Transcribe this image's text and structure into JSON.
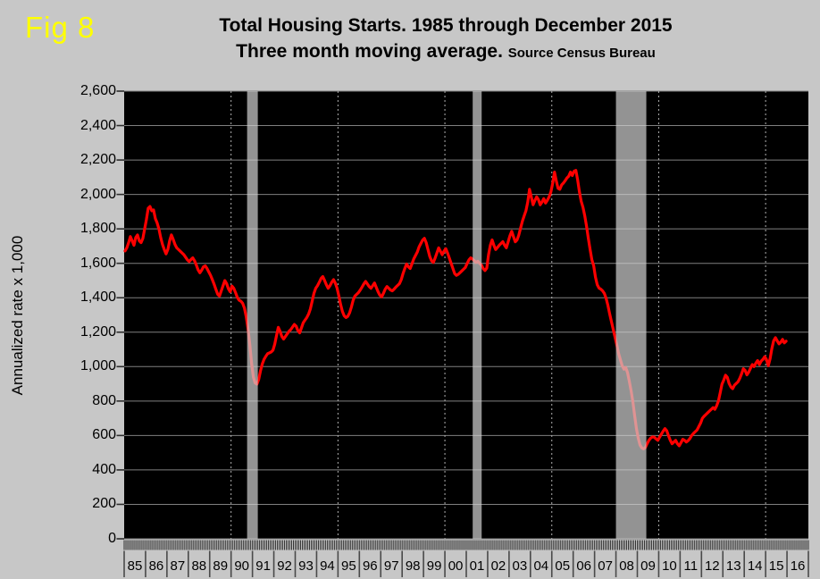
{
  "figure_label": "Fig 8",
  "title": "Total Housing Starts. 1985 through December 2015",
  "subtitle": "Three month moving average.",
  "source_note": "Source Census Bureau",
  "colors": {
    "background": "#C7C7C7",
    "plot_background": "#000000",
    "line": "#FF0000",
    "recession_band": "#D2D2D2",
    "recession_band_opacity": 0.7,
    "gridline": "#7F7F7F",
    "dashed_gridline": "#B0B0B0",
    "axis_tick": "#2E2E2E",
    "figure_label_color": "#FFFF00",
    "text": "#000000"
  },
  "chart_data": {
    "type": "line",
    "title": "Total Housing Starts. 1985 through December 2015",
    "subtitle": "Three month moving average.",
    "source": "Source Census Bureau",
    "xlabel": "",
    "ylabel": "Annualized rate x 1,000",
    "ylim": [
      0,
      2600
    ],
    "y_tick_interval": 200,
    "y_tick_labels": [
      "0",
      "200",
      "400",
      "600",
      "800",
      "1,000",
      "1,200",
      "1,400",
      "1,600",
      "1,800",
      "2,000",
      "2,200",
      "2,400",
      "2,600"
    ],
    "x_tick_labels": [
      "85",
      "86",
      "87",
      "88",
      "89",
      "90",
      "91",
      "92",
      "93",
      "94",
      "95",
      "96",
      "97",
      "98",
      "99",
      "00",
      "01",
      "02",
      "03",
      "04",
      "05",
      "06",
      "07",
      "08",
      "09",
      "10",
      "11",
      "12",
      "13",
      "14",
      "15",
      "16"
    ],
    "x_start_year": 1985,
    "x_gridline_years": [
      1990,
      1995,
      2000,
      2005,
      2010,
      2015
    ],
    "recession_bands": [
      {
        "start": 1990.75,
        "end": 1991.25
      },
      {
        "start": 2001.3,
        "end": 2001.72
      },
      {
        "start": 2008.0,
        "end": 2009.42
      }
    ],
    "grid": true,
    "legend": "none",
    "series": [
      {
        "name": "Total housing starts (3-month moving average)",
        "color": "#FF0000",
        "start_year": 1985,
        "start_month": 1,
        "frequency": "monthly",
        "values": [
          1672,
          1690,
          1720,
          1755,
          1730,
          1705,
          1750,
          1765,
          1730,
          1720,
          1745,
          1800,
          1855,
          1920,
          1930,
          1905,
          1910,
          1860,
          1835,
          1800,
          1750,
          1710,
          1680,
          1655,
          1680,
          1730,
          1765,
          1740,
          1710,
          1690,
          1680,
          1670,
          1660,
          1650,
          1635,
          1620,
          1610,
          1622,
          1632,
          1615,
          1590,
          1562,
          1545,
          1560,
          1580,
          1585,
          1570,
          1550,
          1530,
          1505,
          1478,
          1448,
          1420,
          1410,
          1440,
          1470,
          1500,
          1482,
          1452,
          1435,
          1468,
          1455,
          1430,
          1402,
          1386,
          1380,
          1368,
          1340,
          1290,
          1220,
          1130,
          1020,
          940,
          905,
          898,
          925,
          975,
          1015,
          1042,
          1060,
          1075,
          1080,
          1085,
          1095,
          1130,
          1180,
          1228,
          1205,
          1175,
          1160,
          1175,
          1190,
          1205,
          1215,
          1230,
          1245,
          1235,
          1210,
          1196,
          1225,
          1255,
          1270,
          1285,
          1305,
          1335,
          1380,
          1425,
          1455,
          1470,
          1490,
          1512,
          1523,
          1500,
          1475,
          1455,
          1470,
          1490,
          1505,
          1485,
          1455,
          1410,
          1360,
          1320,
          1295,
          1285,
          1292,
          1312,
          1345,
          1385,
          1410,
          1420,
          1430,
          1445,
          1462,
          1480,
          1495,
          1480,
          1465,
          1455,
          1470,
          1486,
          1460,
          1435,
          1415,
          1405,
          1425,
          1450,
          1465,
          1455,
          1445,
          1440,
          1450,
          1462,
          1472,
          1482,
          1505,
          1540,
          1570,
          1596,
          1580,
          1570,
          1596,
          1625,
          1645,
          1665,
          1695,
          1715,
          1735,
          1745,
          1720,
          1680,
          1640,
          1615,
          1605,
          1630,
          1660,
          1690,
          1670,
          1650,
          1670,
          1685,
          1660,
          1630,
          1600,
          1570,
          1540,
          1530,
          1536,
          1546,
          1556,
          1566,
          1576,
          1600,
          1620,
          1632,
          1625,
          1615,
          1605,
          1612,
          1600,
          1590,
          1570,
          1558,
          1572,
          1650,
          1705,
          1736,
          1705,
          1680,
          1692,
          1705,
          1715,
          1726,
          1705,
          1690,
          1725,
          1760,
          1786,
          1755,
          1725,
          1736,
          1765,
          1805,
          1845,
          1876,
          1906,
          1956,
          2030,
          1985,
          1940,
          1965,
          1986,
          1970,
          1940,
          1956,
          1976,
          1950,
          1966,
          1986,
          2015,
          2065,
          2130,
          2080,
          2036,
          2030,
          2055,
          2066,
          2080,
          2096,
          2106,
          2130,
          2110,
          2135,
          2140,
          2085,
          2015,
          1960,
          1925,
          1876,
          1815,
          1745,
          1680,
          1620,
          1586,
          1520,
          1476,
          1456,
          1450,
          1440,
          1425,
          1396,
          1355,
          1305,
          1260,
          1215,
          1170,
          1125,
          1076,
          1040,
          1005,
          985,
          995,
          965,
          915,
          860,
          795,
          715,
          640,
          585,
          545,
          528,
          522,
          530,
          552,
          572,
          585,
          592,
          590,
          580,
          572,
          590,
          608,
          625,
          640,
          628,
          598,
          572,
          552,
          562,
          572,
          552,
          540,
          558,
          578,
          572,
          562,
          570,
          582,
          600,
          612,
          622,
          632,
          652,
          672,
          700,
          712,
          722,
          732,
          742,
          752,
          762,
          752,
          772,
          800,
          848,
          898,
          922,
          950,
          938,
          902,
          882,
          872,
          892,
          902,
          912,
          932,
          958,
          988,
          978,
          952,
          968,
          990,
          1012,
          1000,
          1020,
          1035,
          1012,
          1032,
          1042,
          1058,
          1040,
          1005,
          1045,
          1105,
          1150,
          1168,
          1150,
          1132,
          1142,
          1158,
          1138,
          1148
        ]
      }
    ]
  }
}
